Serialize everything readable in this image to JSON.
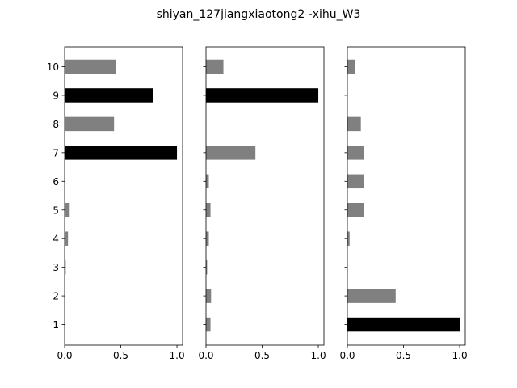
{
  "title": "shiyan_127jiangxiaotong2 -xihu_W3",
  "colors": {
    "bar_default": "#808080",
    "bar_highlight": "#000000",
    "axes": "#000000",
    "background": "#ffffff"
  },
  "chart_data": [
    {
      "type": "bar",
      "orientation": "horizontal",
      "categories": [
        "1",
        "2",
        "3",
        "4",
        "5",
        "6",
        "7",
        "8",
        "9",
        "10"
      ],
      "values": [
        0.0,
        0.0,
        0.01,
        0.03,
        0.045,
        0.0,
        1.0,
        0.44,
        0.79,
        0.455
      ],
      "highlight": [
        false,
        false,
        false,
        false,
        false,
        false,
        true,
        false,
        true,
        false
      ],
      "xlim": [
        0,
        1.05
      ],
      "xticks": [
        "0.0",
        "0.5",
        "1.0"
      ],
      "yticks_shown": true,
      "grid": false
    },
    {
      "type": "bar",
      "orientation": "horizontal",
      "categories": [
        "1",
        "2",
        "3",
        "4",
        "5",
        "6",
        "7",
        "8",
        "9",
        "10"
      ],
      "values": [
        0.04,
        0.045,
        0.01,
        0.025,
        0.04,
        0.025,
        0.44,
        0.0,
        1.0,
        0.155
      ],
      "highlight": [
        false,
        false,
        false,
        false,
        false,
        false,
        false,
        false,
        true,
        false
      ],
      "xlim": [
        0,
        1.05
      ],
      "xticks": [
        "0.0",
        "0.5",
        "1.0"
      ],
      "yticks_shown": false,
      "grid": false
    },
    {
      "type": "bar",
      "orientation": "horizontal",
      "categories": [
        "1",
        "2",
        "3",
        "4",
        "5",
        "6",
        "7",
        "8",
        "9",
        "10"
      ],
      "values": [
        1.0,
        0.43,
        0.0,
        0.02,
        0.15,
        0.15,
        0.15,
        0.12,
        0.0,
        0.07
      ],
      "highlight": [
        true,
        false,
        false,
        false,
        false,
        false,
        false,
        false,
        false,
        false
      ],
      "xlim": [
        0,
        1.05
      ],
      "xticks": [
        "0.0",
        "0.5",
        "1.0"
      ],
      "yticks_shown": false,
      "grid": false
    }
  ]
}
